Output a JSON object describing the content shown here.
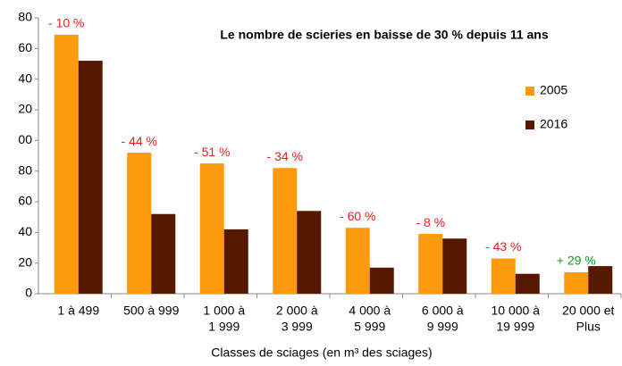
{
  "chart_data": {
    "type": "bar",
    "title": "Le nombre de scieries en baisse de 30 % depuis 11 ans",
    "x_label": "Classes de sciages (en m³ des sciages)",
    "categories": [
      [
        "1 à 499"
      ],
      [
        "500 à 999"
      ],
      [
        "1 000 à",
        "1 999"
      ],
      [
        "2 000 à",
        "3 999"
      ],
      [
        "4 000 à",
        "5 999"
      ],
      [
        "6 000 à",
        "9 999"
      ],
      [
        "10 000 à",
        "19 999"
      ],
      [
        "20 000 et",
        "Plus"
      ]
    ],
    "series": [
      {
        "name": "2005",
        "color": "#ff9a0e",
        "values": [
          169,
          92,
          85,
          82,
          43,
          39,
          23,
          14
        ]
      },
      {
        "name": "2016",
        "color": "#571800",
        "values": [
          152,
          52,
          42,
          54,
          17,
          36,
          13,
          18
        ]
      }
    ],
    "annotations": [
      "- 10 %",
      "- 44 %",
      "- 51 %",
      "- 34 %",
      "- 60 %",
      "- 8 %",
      "- 43 %",
      "+ 29 %"
    ],
    "annotation_colors": [
      "#ee1c1c",
      "#ee1c1c",
      "#ee1c1c",
      "#ee1c1c",
      "#ee1c1c",
      "#ee1c1c",
      "#ee1c1c",
      "#1a9a1a"
    ],
    "ylim": [
      0,
      180
    ],
    "yticks": [
      0,
      20,
      40,
      60,
      80,
      {
        "value": 100,
        "label": "00"
      },
      {
        "value": 120,
        "label": "20"
      },
      {
        "value": 140,
        "label": "40"
      },
      {
        "value": 160,
        "label": "60"
      },
      {
        "value": 180,
        "label": "80"
      }
    ],
    "grid": false,
    "legend": "right"
  }
}
